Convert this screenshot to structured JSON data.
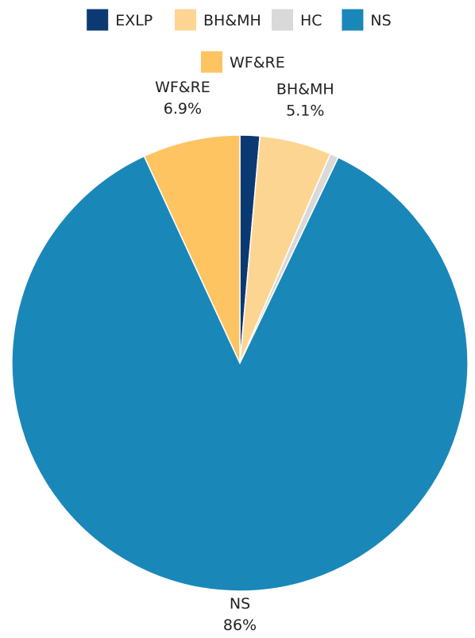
{
  "chart_data": {
    "type": "pie",
    "legend_position": "top",
    "slices": [
      {
        "label": "EXLP",
        "value": 1.4,
        "color": "#0b3a73"
      },
      {
        "label": "BH&MH",
        "value": 5.1,
        "color": "#fdd592",
        "display": "5.1%"
      },
      {
        "label": "HC",
        "value": 0.6,
        "color": "#d9d9d9"
      },
      {
        "label": "NS",
        "value": 86.0,
        "color": "#1a87b9",
        "display": "86%"
      },
      {
        "label": "WF&RE",
        "value": 6.9,
        "color": "#fec461",
        "display": "6.9%"
      }
    ]
  }
}
